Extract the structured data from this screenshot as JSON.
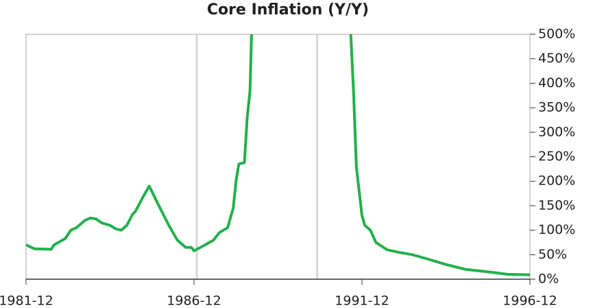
{
  "chart_data": {
    "type": "line",
    "title": "Core Inflation (Y/Y)",
    "x": [
      "1981-12",
      "1982-03",
      "1982-09",
      "1982-10",
      "1983-02",
      "1983-04",
      "1983-06",
      "1983-09",
      "1983-11",
      "1984-01",
      "1984-03",
      "1984-06",
      "1984-08",
      "1984-10",
      "1984-12",
      "1985-02",
      "1985-03",
      "1985-06",
      "1985-08",
      "1985-11",
      "1986-03",
      "1986-06",
      "1986-09",
      "1986-11",
      "1986-12",
      "1987-04",
      "1987-07",
      "1987-09",
      "1987-12",
      "1988-02",
      "1988-03",
      "1988-04",
      "1988-06",
      "1988-07",
      "1988-08",
      "1988-09",
      "1991-07",
      "1991-08",
      "1991-09",
      "1991-10",
      "1991-12",
      "1992-01",
      "1992-03",
      "1992-05",
      "1992-09",
      "1993-01",
      "1993-06",
      "1993-11",
      "1994-06",
      "1995-01",
      "1995-09",
      "1996-04",
      "1996-12"
    ],
    "values": [
      70,
      62,
      61,
      70,
      83,
      100,
      105,
      120,
      125,
      123,
      115,
      110,
      103,
      100,
      110,
      132,
      138,
      170,
      190,
      155,
      110,
      80,
      65,
      65,
      58,
      70,
      80,
      95,
      105,
      145,
      200,
      235,
      238,
      330,
      385,
      600,
      600,
      500,
      380,
      230,
      130,
      110,
      100,
      75,
      60,
      55,
      50,
      42,
      30,
      20,
      15,
      10,
      9
    ],
    "color": "#22b04b",
    "xlim": [
      "1981-12",
      "1996-12"
    ],
    "xticks": [
      "1981-12",
      "1986-12",
      "1991-12",
      "1996-12"
    ],
    "vlines": [
      "1987-01",
      "1990-08"
    ],
    "ylim": [
      0,
      500
    ],
    "yticks": [
      {
        "value": 0,
        "label": "0%"
      },
      {
        "value": 50,
        "label": "50%"
      },
      {
        "value": 100,
        "label": "100%"
      },
      {
        "value": 150,
        "label": "150%"
      },
      {
        "value": 200,
        "label": "200%"
      },
      {
        "value": 250,
        "label": "250%"
      },
      {
        "value": 300,
        "label": "300%"
      },
      {
        "value": 350,
        "label": "350%"
      },
      {
        "value": 400,
        "label": "400%"
      },
      {
        "value": 450,
        "label": "450%"
      },
      {
        "value": 500,
        "label": "500%"
      }
    ]
  }
}
